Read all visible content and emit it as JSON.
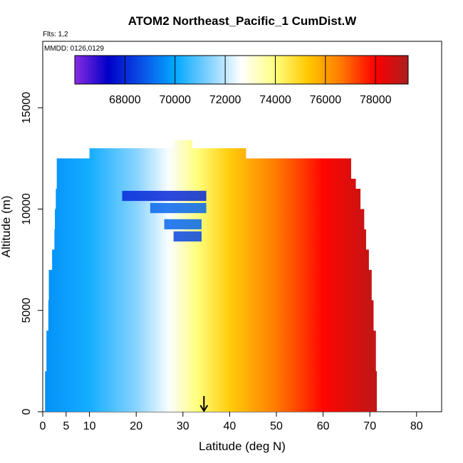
{
  "chart_data": {
    "type": "heatmap",
    "title": "ATOM2 Northeast_Pacific_1 CumDist.W",
    "flights_label": "Flts: 1,2",
    "dates_label": "MMDD: 0126,0129",
    "xlabel": "Latitude (deg N)",
    "ylabel": "Altitude (m)",
    "xlim": [
      0,
      85
    ],
    "ylim": [
      0,
      17500
    ],
    "x_ticks": [
      0,
      5,
      10,
      20,
      30,
      40,
      50,
      60,
      70,
      80
    ],
    "y_ticks": [
      0,
      5000,
      10000,
      15000
    ],
    "colorbar": {
      "range": [
        66000,
        79300
      ],
      "ticks": [
        68000,
        70000,
        72000,
        74000,
        76000,
        78000
      ],
      "colors": [
        "#8a2be2",
        "#0000c8",
        "#0a50e6",
        "#00a8ff",
        "#7fd0ff",
        "#ffffff",
        "#ffff80",
        "#ffc800",
        "#ff7800",
        "#ff0000",
        "#aa1e1e"
      ]
    },
    "arrow_x": 34.5,
    "profile_edges": [
      {
        "y": 0,
        "min_lat": 0.5,
        "max_lat": 71.5
      },
      {
        "y": 2000,
        "min_lat": 0.8,
        "max_lat": 71.3
      },
      {
        "y": 4000,
        "min_lat": 1.2,
        "max_lat": 70.8
      },
      {
        "y": 5500,
        "min_lat": 1.3,
        "max_lat": 70.4
      },
      {
        "y": 7000,
        "min_lat": 2.0,
        "max_lat": 69.8
      },
      {
        "y": 8000,
        "min_lat": 2.5,
        "max_lat": 69.2
      },
      {
        "y": 9000,
        "min_lat": 2.6,
        "max_lat": 68.8
      },
      {
        "y": 10000,
        "min_lat": 2.8,
        "max_lat": 68.0
      },
      {
        "y": 11000,
        "min_lat": 3.0,
        "max_lat": 67.0
      },
      {
        "y": 11500,
        "min_lat": 3.0,
        "max_lat": 66.0
      },
      {
        "y": 12500,
        "min_lat": 10.0,
        "max_lat": 43.5
      },
      {
        "y": 13000,
        "min_lat": 28.0,
        "max_lat": 32.0
      }
    ],
    "cumdist_by_latitude": [
      {
        "lat": 0,
        "value": 69600
      },
      {
        "lat": 10,
        "value": 70200
      },
      {
        "lat": 20,
        "value": 71400
      },
      {
        "lat": 27,
        "value": 72600
      },
      {
        "lat": 33,
        "value": 74000
      },
      {
        "lat": 40,
        "value": 75200
      },
      {
        "lat": 50,
        "value": 76600
      },
      {
        "lat": 60,
        "value": 77900
      },
      {
        "lat": 70,
        "value": 78900
      }
    ],
    "anomaly_patch": [
      {
        "y": 10400,
        "lat_start": 17,
        "lat_end": 35,
        "value": 68000
      },
      {
        "y": 9800,
        "lat_start": 23,
        "lat_end": 35,
        "value": 69000
      },
      {
        "y": 9000,
        "lat_start": 26,
        "lat_end": 34,
        "value": 69000
      },
      {
        "y": 8400,
        "lat_start": 28,
        "lat_end": 34,
        "value": 68500
      }
    ]
  }
}
